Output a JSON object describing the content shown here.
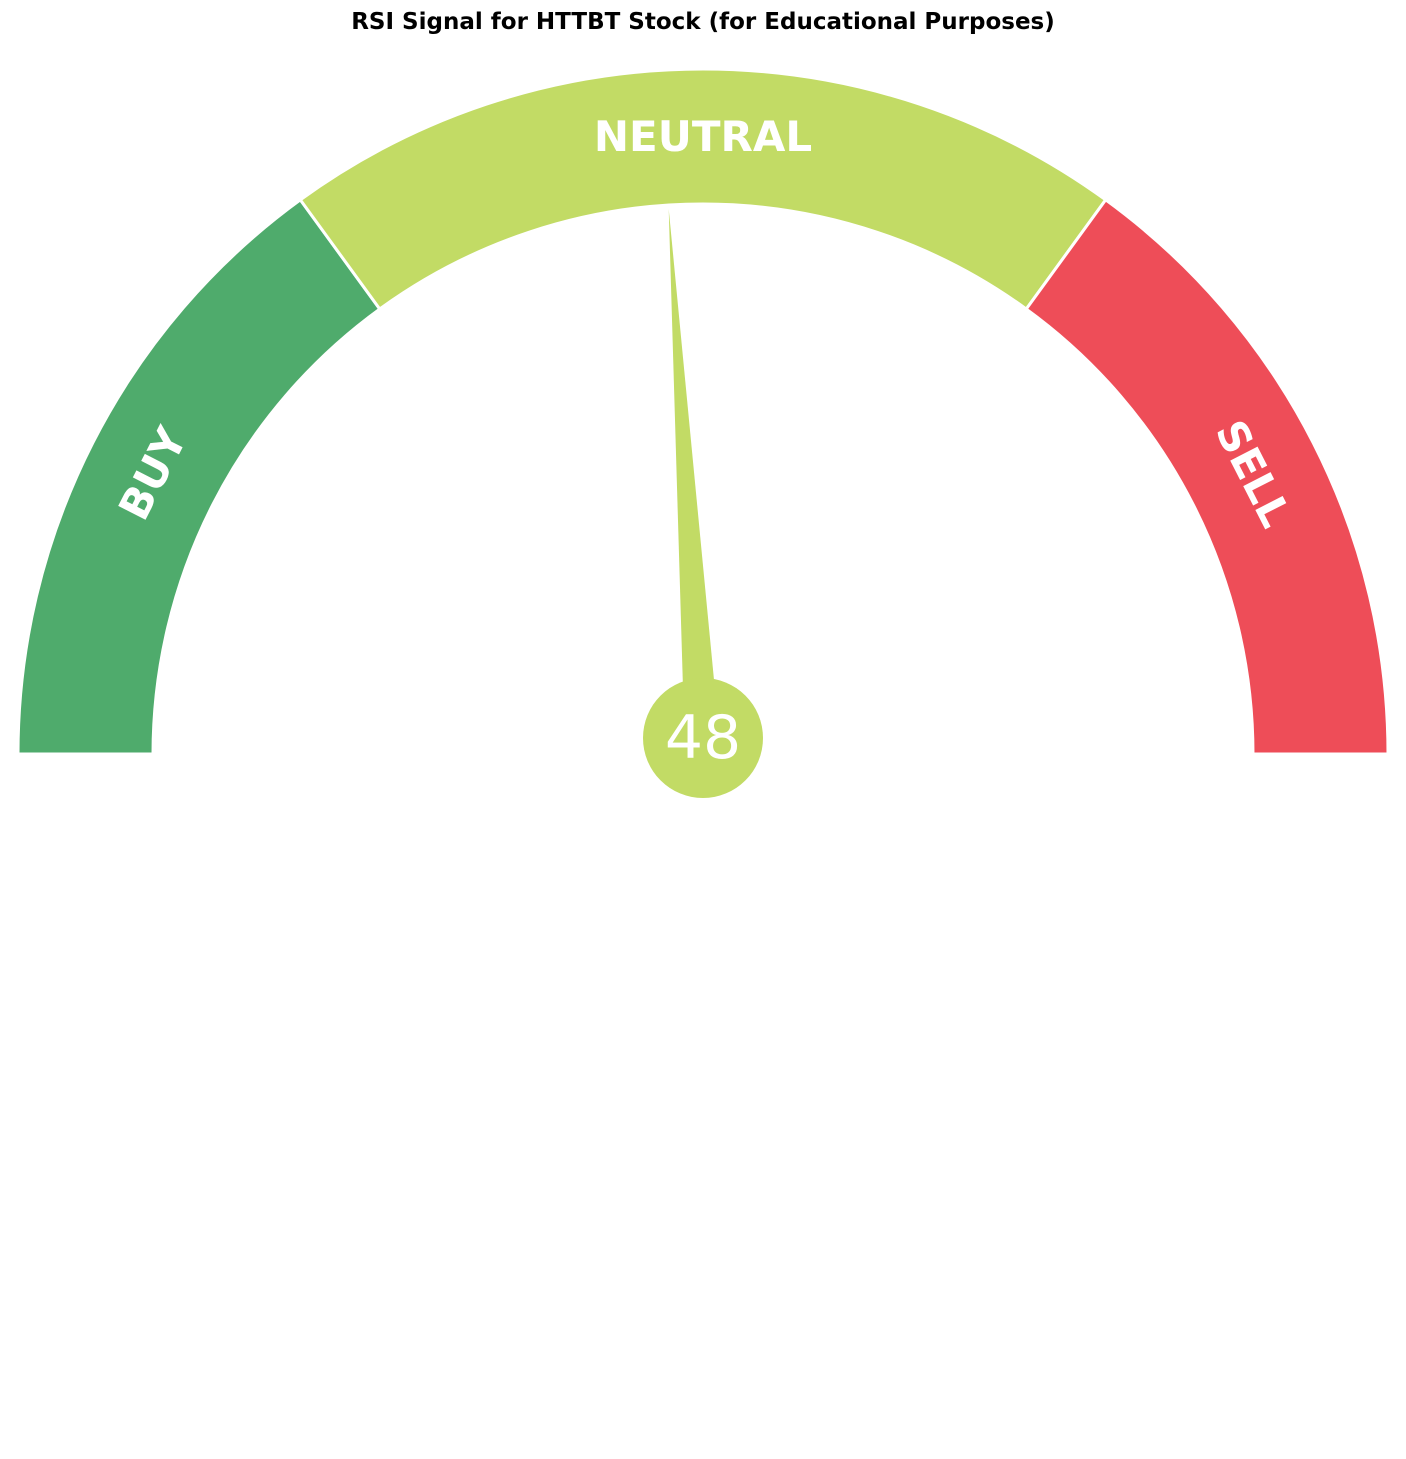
{
  "chart_data": {
    "type": "gauge",
    "title": "RSI Signal for HTTBT Stock (for Educational Purposes)",
    "min": 0,
    "max": 100,
    "value": 48,
    "value_label": "48",
    "zones": [
      {
        "label": "BUY",
        "from": 0,
        "to": 30,
        "color": "#4fab6c"
      },
      {
        "label": "NEUTRAL",
        "from": 30,
        "to": 70,
        "color": "#c2db65"
      },
      {
        "label": "SELL",
        "from": 70,
        "to": 100,
        "color": "#ee4d58"
      }
    ],
    "needle_color": "#c2db65"
  }
}
